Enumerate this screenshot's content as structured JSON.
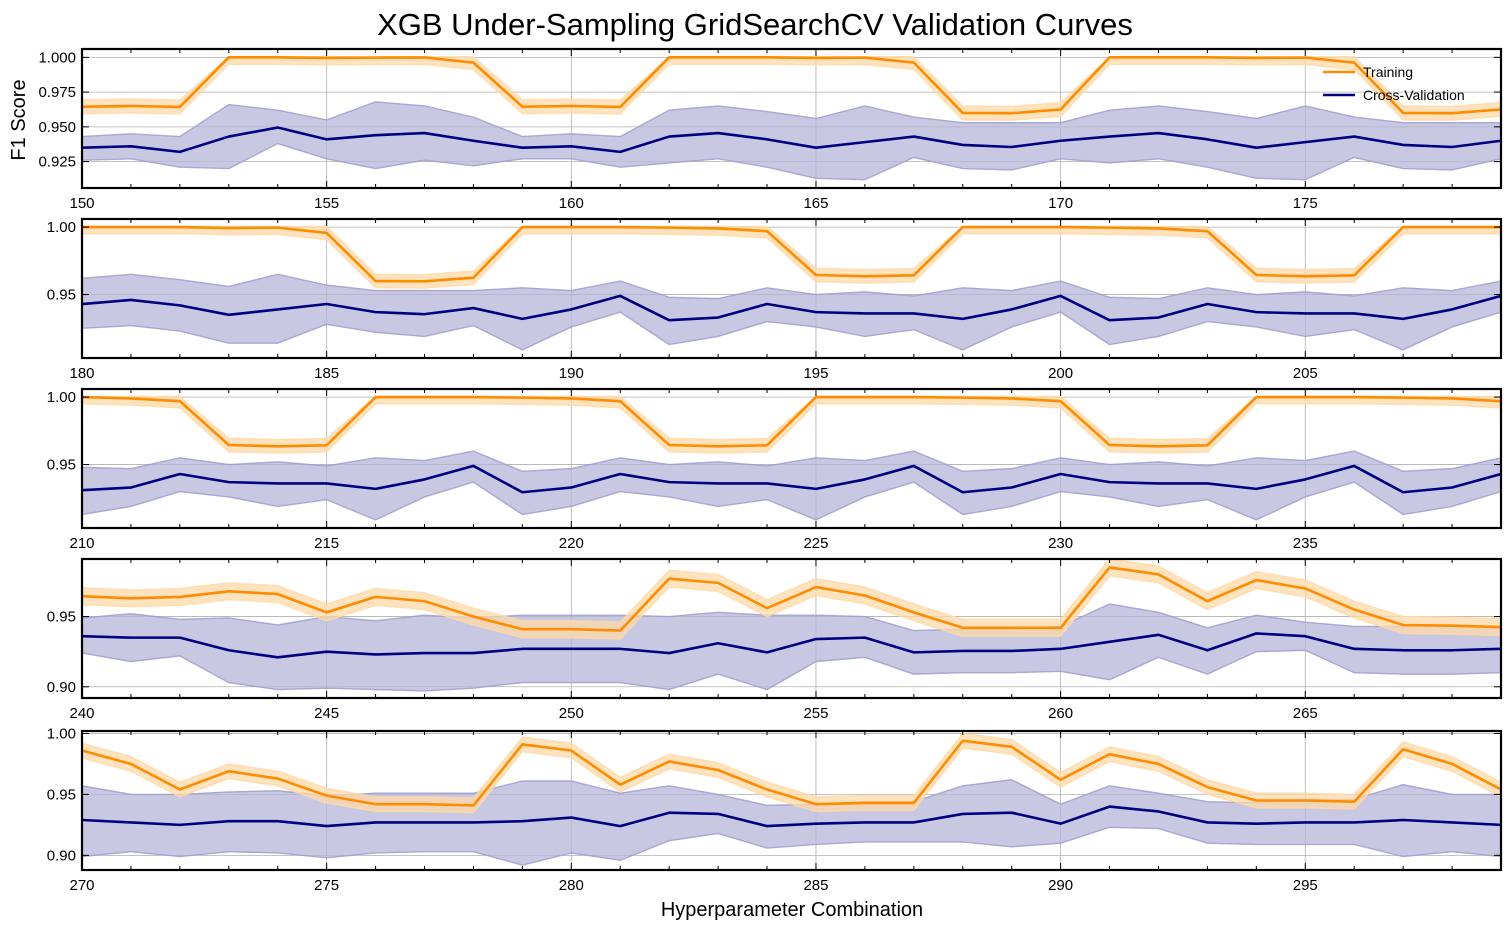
{
  "chart_data": {
    "type": "line",
    "title": "XGB Under-Sampling GridSearchCV Validation Curves",
    "xlabel": "Hyperparameter Combination",
    "ylabel": "F1 Score",
    "grid": true,
    "legend": {
      "position": "top-right",
      "entries": [
        "Training",
        "Cross-Validation"
      ]
    },
    "colors": {
      "training": "#ff8c00",
      "training_band": "#ffd9a8",
      "cv": "#000080",
      "cv_band": "#b5b5d8",
      "cv_band_edge": "#9d9dce"
    },
    "panels": [
      {
        "xlim": [
          150,
          179
        ],
        "ylim": [
          0.906,
          1.006
        ],
        "yticks": [
          0.925,
          0.95,
          0.975,
          1.0
        ],
        "ytick_labels": [
          "0.925",
          "0.950",
          "0.975",
          "1.000"
        ],
        "xticks": [
          150,
          155,
          160,
          165,
          170,
          175
        ],
        "series": [
          {
            "name": "Training",
            "values": [
              0.9645,
              0.965,
              0.9643,
              1.0,
              1.0,
              0.9996,
              0.9998,
              0.9999,
              0.9962,
              0.9645,
              0.965,
              0.9643,
              1.0,
              1.0,
              1.0,
              0.9996,
              0.9998,
              0.9962,
              0.96,
              0.9598,
              0.9625,
              1.0,
              1.0,
              1.0,
              0.9996,
              0.9998,
              0.9962,
              0.96,
              0.9598,
              0.9625
            ],
            "band": 0.005
          },
          {
            "name": "Cross-Validation",
            "values": [
              0.935,
              0.936,
              0.932,
              0.943,
              0.9495,
              0.941,
              0.944,
              0.9455,
              0.94,
              0.935,
              0.936,
              0.932,
              0.943,
              0.9455,
              0.941,
              0.935,
              0.939,
              0.943,
              0.937,
              0.9355,
              0.94,
              0.943,
              0.9455,
              0.941,
              0.935,
              0.939,
              0.943,
              0.937,
              0.9355,
              0.94
            ],
            "lower": [
              0.926,
              0.927,
              0.921,
              0.92,
              0.938,
              0.927,
              0.92,
              0.926,
              0.922,
              0.927,
              0.927,
              0.921,
              0.924,
              0.927,
              0.921,
              0.913,
              0.912,
              0.928,
              0.92,
              0.919,
              0.927,
              0.924,
              0.927,
              0.921,
              0.913,
              0.912,
              0.928,
              0.92,
              0.919,
              0.927
            ],
            "upper": [
              0.943,
              0.945,
              0.943,
              0.966,
              0.962,
              0.955,
              0.968,
              0.965,
              0.957,
              0.943,
              0.945,
              0.943,
              0.962,
              0.965,
              0.961,
              0.956,
              0.965,
              0.957,
              0.953,
              0.953,
              0.953,
              0.962,
              0.965,
              0.961,
              0.956,
              0.965,
              0.957,
              0.953,
              0.953,
              0.953
            ]
          }
        ]
      },
      {
        "xlim": [
          180,
          209
        ],
        "ylim": [
          0.903,
          1.006
        ],
        "yticks": [
          0.95,
          1.0
        ],
        "ytick_labels": [
          "0.95",
          "1.00"
        ],
        "xticks": [
          180,
          185,
          190,
          195,
          200,
          205
        ],
        "series": [
          {
            "name": "Training",
            "values": [
              1.0,
              1.0,
              1.0,
              0.9993,
              0.9996,
              0.9957,
              0.96,
              0.9598,
              0.9625,
              1.0,
              1.0,
              1.0,
              0.9996,
              0.999,
              0.997,
              0.9645,
              0.9635,
              0.9643,
              1.0,
              1.0,
              1.0,
              0.9996,
              0.999,
              0.997,
              0.9645,
              0.9635,
              0.9643,
              1.0,
              1.0,
              1.0
            ],
            "band": 0.005
          },
          {
            "name": "Cross-Validation",
            "values": [
              0.943,
              0.946,
              0.942,
              0.935,
              0.939,
              0.943,
              0.937,
              0.9355,
              0.94,
              0.932,
              0.939,
              0.949,
              0.931,
              0.933,
              0.943,
              0.937,
              0.936,
              0.936,
              0.932,
              0.939,
              0.949,
              0.931,
              0.933,
              0.943,
              0.937,
              0.936,
              0.936,
              0.932,
              0.939,
              0.949
            ],
            "lower": [
              0.925,
              0.927,
              0.923,
              0.914,
              0.914,
              0.928,
              0.922,
              0.919,
              0.927,
              0.909,
              0.926,
              0.937,
              0.913,
              0.919,
              0.93,
              0.926,
              0.919,
              0.924,
              0.909,
              0.926,
              0.937,
              0.913,
              0.919,
              0.93,
              0.926,
              0.919,
              0.924,
              0.909,
              0.926,
              0.937
            ],
            "upper": [
              0.962,
              0.965,
              0.961,
              0.956,
              0.965,
              0.957,
              0.953,
              0.953,
              0.953,
              0.955,
              0.953,
              0.96,
              0.948,
              0.947,
              0.955,
              0.95,
              0.952,
              0.949,
              0.955,
              0.953,
              0.96,
              0.948,
              0.947,
              0.955,
              0.95,
              0.952,
              0.949,
              0.955,
              0.953,
              0.96
            ]
          }
        ]
      },
      {
        "xlim": [
          210,
          239
        ],
        "ylim": [
          0.903,
          1.006
        ],
        "yticks": [
          0.95,
          1.0
        ],
        "ytick_labels": [
          "0.95",
          "1.00"
        ],
        "xticks": [
          210,
          215,
          220,
          225,
          230,
          235
        ],
        "series": [
          {
            "name": "Training",
            "values": [
              1.0,
              0.999,
              0.997,
              0.9645,
              0.9635,
              0.9643,
              1.0,
              1.0,
              1.0,
              0.9996,
              0.999,
              0.997,
              0.9645,
              0.9635,
              0.9643,
              1.0,
              1.0,
              1.0,
              0.9996,
              0.999,
              0.997,
              0.9645,
              0.9635,
              0.9643,
              1.0,
              1.0,
              1.0,
              0.9996,
              0.999,
              0.997
            ],
            "band": 0.005
          },
          {
            "name": "Cross-Validation",
            "values": [
              0.931,
              0.933,
              0.943,
              0.937,
              0.936,
              0.936,
              0.932,
              0.939,
              0.949,
              0.9295,
              0.933,
              0.943,
              0.937,
              0.936,
              0.936,
              0.932,
              0.939,
              0.949,
              0.9295,
              0.933,
              0.943,
              0.937,
              0.936,
              0.936,
              0.932,
              0.939,
              0.949,
              0.9295,
              0.933,
              0.943
            ],
            "lower": [
              0.913,
              0.919,
              0.93,
              0.926,
              0.919,
              0.924,
              0.909,
              0.926,
              0.937,
              0.913,
              0.919,
              0.93,
              0.926,
              0.919,
              0.924,
              0.909,
              0.926,
              0.937,
              0.913,
              0.919,
              0.93,
              0.926,
              0.919,
              0.924,
              0.909,
              0.926,
              0.937,
              0.913,
              0.919,
              0.93
            ],
            "upper": [
              0.948,
              0.947,
              0.955,
              0.95,
              0.952,
              0.949,
              0.955,
              0.953,
              0.96,
              0.945,
              0.947,
              0.955,
              0.95,
              0.952,
              0.949,
              0.955,
              0.953,
              0.96,
              0.945,
              0.947,
              0.955,
              0.95,
              0.952,
              0.949,
              0.955,
              0.953,
              0.96,
              0.945,
              0.947,
              0.955
            ]
          }
        ]
      },
      {
        "xlim": [
          240,
          269
        ],
        "ylim": [
          0.892,
          0.991
        ],
        "yticks": [
          0.9,
          0.95
        ],
        "ytick_labels": [
          "0.90",
          "0.95"
        ],
        "xticks": [
          240,
          245,
          250,
          255,
          260,
          265
        ],
        "series": [
          {
            "name": "Training",
            "values": [
              0.9645,
              0.963,
              0.964,
              0.968,
              0.966,
              0.953,
              0.964,
              0.961,
              0.95,
              0.941,
              0.941,
              0.94,
              0.977,
              0.974,
              0.956,
              0.971,
              0.965,
              0.953,
              0.942,
              0.942,
              0.942,
              0.985,
              0.98,
              0.961,
              0.976,
              0.97,
              0.955,
              0.944,
              0.9435,
              0.9425
            ],
            "band": 0.006
          },
          {
            "name": "Cross-Validation",
            "values": [
              0.936,
              0.935,
              0.935,
              0.926,
              0.921,
              0.925,
              0.923,
              0.924,
              0.924,
              0.927,
              0.927,
              0.927,
              0.924,
              0.931,
              0.9245,
              0.934,
              0.935,
              0.9245,
              0.9255,
              0.9255,
              0.927,
              0.932,
              0.937,
              0.926,
              0.938,
              0.936,
              0.927,
              0.926,
              0.926,
              0.927
            ],
            "lower": [
              0.924,
              0.918,
              0.922,
              0.903,
              0.898,
              0.899,
              0.898,
              0.897,
              0.899,
              0.903,
              0.903,
              0.903,
              0.898,
              0.909,
              0.898,
              0.918,
              0.921,
              0.909,
              0.91,
              0.91,
              0.911,
              0.905,
              0.921,
              0.909,
              0.925,
              0.926,
              0.91,
              0.909,
              0.909,
              0.91
            ],
            "upper": [
              0.949,
              0.952,
              0.948,
              0.949,
              0.944,
              0.95,
              0.947,
              0.951,
              0.949,
              0.951,
              0.951,
              0.951,
              0.95,
              0.953,
              0.951,
              0.951,
              0.95,
              0.94,
              0.941,
              0.941,
              0.943,
              0.959,
              0.953,
              0.942,
              0.951,
              0.946,
              0.943,
              0.943,
              0.943,
              0.943
            ]
          }
        ]
      },
      {
        "xlim": [
          270,
          299
        ],
        "ylim": [
          0.888,
          1.002
        ],
        "yticks": [
          0.9,
          0.95,
          1.0
        ],
        "ytick_labels": [
          "0.90",
          "0.95",
          "1.00"
        ],
        "xticks": [
          270,
          275,
          280,
          285,
          290,
          295
        ],
        "series": [
          {
            "name": "Training",
            "values": [
              0.986,
              0.975,
              0.954,
              0.969,
              0.963,
              0.949,
              0.942,
              0.942,
              0.941,
              0.991,
              0.986,
              0.958,
              0.977,
              0.97,
              0.954,
              0.942,
              0.943,
              0.943,
              0.994,
              0.989,
              0.962,
              0.983,
              0.975,
              0.956,
              0.945,
              0.945,
              0.944,
              0.987,
              0.975,
              0.954
            ],
            "band": 0.006
          },
          {
            "name": "Cross-Validation",
            "values": [
              0.929,
              0.927,
              0.925,
              0.928,
              0.928,
              0.924,
              0.927,
              0.927,
              0.927,
              0.928,
              0.931,
              0.924,
              0.935,
              0.934,
              0.924,
              0.926,
              0.927,
              0.927,
              0.934,
              0.935,
              0.926,
              0.94,
              0.936,
              0.927,
              0.926,
              0.927,
              0.927,
              0.929,
              0.927,
              0.925
            ],
            "lower": [
              0.899,
              0.903,
              0.899,
              0.903,
              0.902,
              0.898,
              0.902,
              0.903,
              0.903,
              0.892,
              0.902,
              0.896,
              0.912,
              0.918,
              0.906,
              0.909,
              0.911,
              0.911,
              0.911,
              0.907,
              0.91,
              0.923,
              0.922,
              0.91,
              0.909,
              0.909,
              0.909,
              0.899,
              0.903,
              0.899
            ],
            "upper": [
              0.957,
              0.95,
              0.95,
              0.952,
              0.953,
              0.949,
              0.951,
              0.951,
              0.951,
              0.961,
              0.961,
              0.951,
              0.957,
              0.95,
              0.941,
              0.942,
              0.944,
              0.944,
              0.957,
              0.962,
              0.942,
              0.957,
              0.951,
              0.944,
              0.943,
              0.946,
              0.946,
              0.958,
              0.95,
              0.95
            ]
          }
        ]
      }
    ]
  }
}
